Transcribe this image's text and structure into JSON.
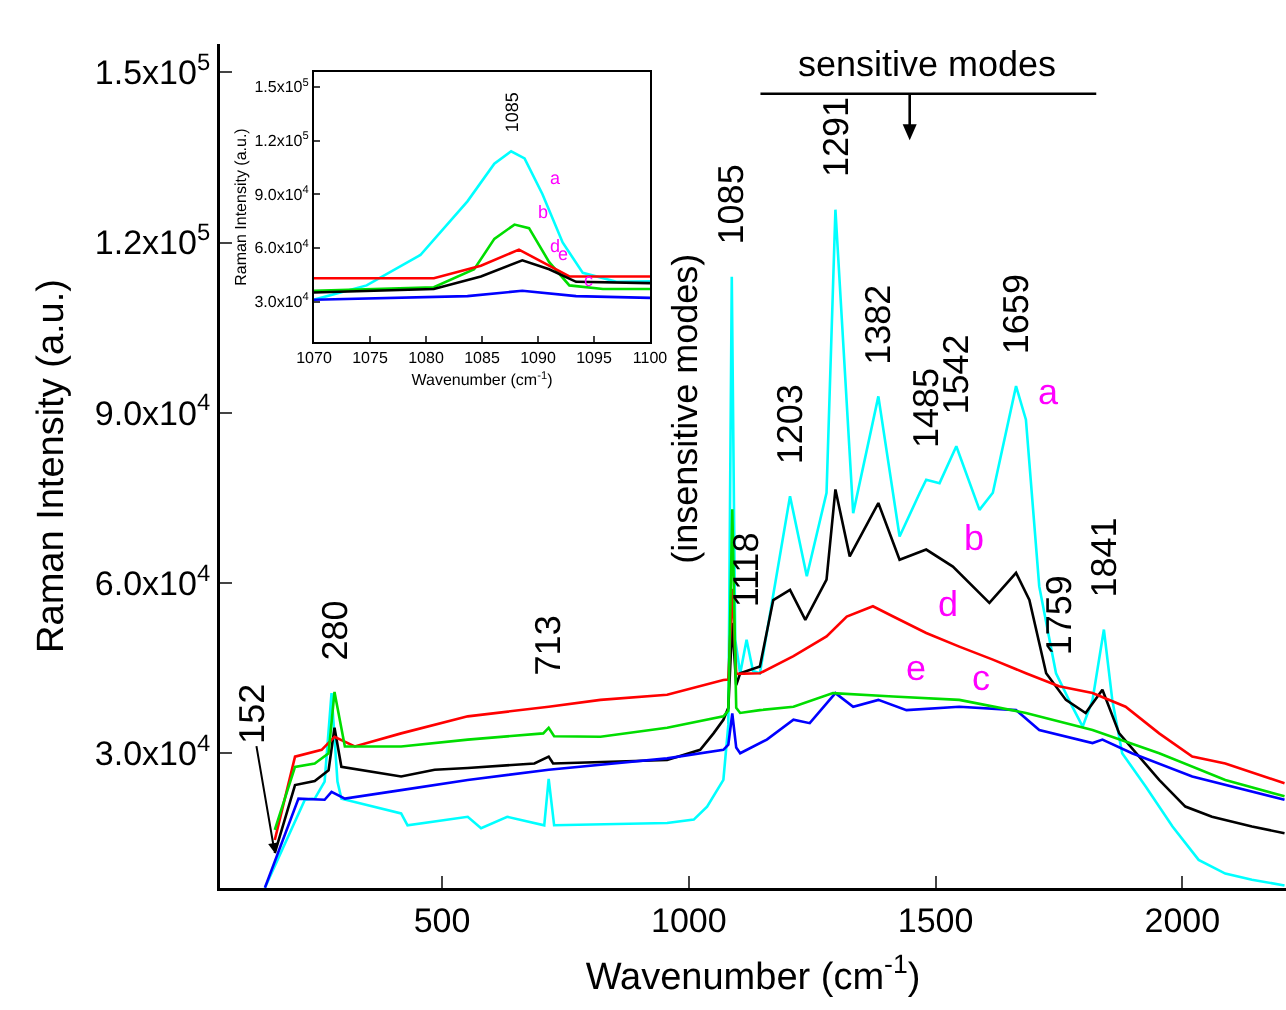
{
  "chart_data": [
    {
      "type": "line",
      "xlabel": "Wavenumber (cm$^{-1}$)",
      "ylabel": "Raman Intensity (a.u.)",
      "xlim": [
        50,
        2210
      ],
      "ylim": [
        6250,
        155000
      ],
      "xticks": [
        500,
        1000,
        1500,
        2000
      ],
      "yticks": [
        {
          "value": 30000,
          "label": "3.0x10$^{4}$"
        },
        {
          "value": 60000,
          "label": "6.0x10$^{4}$"
        },
        {
          "value": 90000,
          "label": "9.0x10$^{4}$"
        },
        {
          "value": 120000,
          "label": "1.2x10$^{5}$"
        },
        {
          "value": 150000,
          "label": "1.5x10$^{5}$"
        }
      ],
      "grid": false,
      "marker": "none",
      "line_style": "solid",
      "series": [
        {
          "color": "#00ffff",
          "x": [
            141,
            222,
            242,
            262,
            276,
            288,
            296,
            417,
            430,
            552,
            579,
            632,
            707,
            716,
            727,
            956,
            1010,
            1037,
            1070,
            1080,
            1087,
            1094,
            1104,
            1117,
            1130,
            1144,
            1205,
            1239,
            1279,
            1297,
            1333,
            1384,
            1427,
            1468,
            1481,
            1508,
            1542,
            1589,
            1616,
            1663,
            1683,
            1710,
            1744,
            1777,
            1798,
            1818,
            1841,
            1858,
            1878,
            1926,
            1980,
            2033,
            2087,
            2141,
            2207
          ],
          "values": [
            6300,
            21800,
            22000,
            25000,
            40600,
            25000,
            22000,
            19400,
            17300,
            18800,
            16800,
            18800,
            17300,
            25500,
            17300,
            17700,
            18300,
            20600,
            25300,
            35000,
            114000,
            50000,
            44000,
            50000,
            44500,
            44100,
            75300,
            61200,
            75900,
            125800,
            72300,
            92900,
            68200,
            75900,
            78200,
            77600,
            84100,
            72900,
            75900,
            94700,
            88800,
            59400,
            44100,
            38200,
            34700,
            39400,
            51800,
            39400,
            30000,
            24100,
            17100,
            11200,
            8800,
            7700,
            6700
          ]
        },
        {
          "color": "#000000",
          "x": [
            161,
            202,
            242,
            270,
            282,
            296,
            417,
            485,
            552,
            687,
            716,
            725,
            956,
            1023,
            1050,
            1070,
            1080,
            1088,
            1096,
            1104,
            1144,
            1171,
            1205,
            1236,
            1279,
            1297,
            1326,
            1384,
            1427,
            1481,
            1535,
            1609,
            1663,
            1690,
            1724,
            1764,
            1804,
            1838,
            1872,
            1953,
            2006,
            2060,
            2141,
            2207
          ],
          "values": [
            12400,
            24400,
            25100,
            27000,
            34500,
            27600,
            25900,
            27100,
            27400,
            28200,
            29400,
            28200,
            28800,
            30600,
            33500,
            35900,
            38000,
            53000,
            42000,
            44100,
            45300,
            57000,
            58800,
            53500,
            60600,
            76500,
            64700,
            74100,
            64100,
            65900,
            62900,
            56500,
            61800,
            57000,
            44100,
            39400,
            37100,
            41200,
            33500,
            25300,
            20600,
            18800,
            17100,
            15900
          ]
        },
        {
          "color": "#0000ff",
          "x": [
            141,
            209,
            262,
            276,
            303,
            417,
            552,
            716,
            956,
            1070,
            1080,
            1088,
            1096,
            1104,
            1158,
            1212,
            1245,
            1297,
            1333,
            1384,
            1441,
            1548,
            1663,
            1710,
            1818,
            1838,
            1898,
            2020,
            2207
          ],
          "values": [
            6300,
            22000,
            21800,
            23200,
            22000,
            23500,
            25300,
            27100,
            29100,
            30600,
            31500,
            37000,
            31000,
            30000,
            32400,
            35900,
            35300,
            40600,
            38200,
            39400,
            37600,
            38200,
            37600,
            34100,
            31800,
            32400,
            30000,
            25900,
            21800
          ]
        },
        {
          "color": "#ff0000",
          "x": [
            161,
            202,
            256,
            282,
            323,
            417,
            552,
            716,
            821,
            956,
            1070,
            1080,
            1088,
            1096,
            1144,
            1212,
            1279,
            1320,
            1373,
            1414,
            1481,
            1548,
            1616,
            1683,
            1750,
            1818,
            1885,
            1953,
            2020,
            2087,
            2207
          ],
          "values": [
            14700,
            29400,
            30600,
            32900,
            31200,
            33500,
            36500,
            38200,
            39400,
            40300,
            42900,
            43000,
            59000,
            44000,
            44100,
            47100,
            50600,
            54100,
            55900,
            54100,
            51200,
            48800,
            46500,
            44100,
            41800,
            40600,
            38200,
            33500,
            29400,
            28200,
            24700
          ]
        },
        {
          "color": "#00dd00",
          "x": [
            161,
            202,
            242,
            270,
            282,
            303,
            417,
            552,
            705,
            716,
            727,
            821,
            956,
            1070,
            1080,
            1088,
            1096,
            1104,
            1144,
            1212,
            1292,
            1414,
            1548,
            1683,
            1818,
            1953,
            2087,
            2207
          ],
          "values": [
            16500,
            27600,
            28200,
            30000,
            40800,
            31200,
            31200,
            32400,
            33500,
            34500,
            33000,
            32900,
            34500,
            36500,
            37500,
            73000,
            38000,
            37100,
            37600,
            38200,
            40600,
            40000,
            39400,
            37100,
            34100,
            30000,
            25300,
            22400
          ]
        }
      ],
      "annotations": [
        {
          "text": "152",
          "x": 161,
          "y": 12400
        },
        {
          "text": "280",
          "x": 282,
          "y": 40800
        },
        {
          "text": "713",
          "x": 716,
          "y": 38200
        },
        "(insensitive modes)",
        {
          "text": "1085",
          "x": 1087,
          "y": 114000
        },
        {
          "text": "1118",
          "x": 1117,
          "y": 50000
        },
        {
          "text": "1203",
          "x": 1205,
          "y": 75300
        },
        {
          "text": "1291",
          "x": 1297,
          "y": 125800
        },
        {
          "text": "1382",
          "x": 1384,
          "y": 92900
        },
        {
          "text": "1485",
          "x": 1481,
          "y": 78200
        },
        {
          "text": "1542",
          "x": 1542,
          "y": 84100
        },
        {
          "text": "1659",
          "x": 1663,
          "y": 94700
        },
        {
          "text": "1759",
          "x": 1750,
          "y": 41800
        },
        {
          "text": "1841",
          "x": 1841,
          "y": 51800
        },
        {
          "text": "a",
          "x": 1683,
          "y": 88800
        },
        {
          "text": "b",
          "x": 1535,
          "y": 62900
        },
        {
          "text": "d",
          "x": 1481,
          "y": 51200
        },
        {
          "text": "e",
          "x": 1414,
          "y": 40000
        },
        {
          "text": "c",
          "x": 1548,
          "y": 38200
        },
        "sensitive modes"
      ]
    },
    {
      "type": "line",
      "xlabel": "Wavenumber (cm$^{-1}$)",
      "ylabel": "Raman Intensity (a.u.)",
      "xlim": [
        1070,
        1100
      ],
      "ylim": [
        7360,
        158300
      ],
      "xticks": [
        1070,
        1075,
        1080,
        1085,
        1090,
        1095,
        1100
      ],
      "yticks": [
        {
          "value": 30000,
          "label": "3.0x10$^{4}$"
        },
        {
          "value": 60000,
          "label": "6.0x10$^{4}$"
        },
        {
          "value": 90000,
          "label": "9.0x10$^{4}$"
        },
        {
          "value": 120000,
          "label": "1.2x10$^{5}$"
        },
        {
          "value": 150000,
          "label": "1.5x10$^{5}$"
        }
      ],
      "grid": false,
      "marker": "none",
      "line_style": "solid",
      "series": [
        {
          "color": "#00ffff",
          "x": [
            1070,
            1074.7,
            1079.5,
            1083.7,
            1086.1,
            1087.6,
            1088.8,
            1090.4,
            1092.2,
            1094,
            1097,
            1100
          ],
          "values": [
            31000,
            39000,
            56000,
            86000,
            107000,
            114000,
            110000,
            90000,
            63000,
            46000,
            41000,
            41300
          ]
        },
        {
          "color": "#00dd00",
          "x": [
            1070,
            1080.7,
            1084.3,
            1086.1,
            1087.9,
            1089.2,
            1091,
            1092.8,
            1095.8,
            1100
          ],
          "values": [
            36000,
            38000,
            48000,
            65000,
            73000,
            71000,
            52000,
            39000,
            37000,
            37000
          ]
        },
        {
          "color": "#ff0000",
          "x": [
            1070,
            1080.7,
            1084.9,
            1088.3,
            1090.4,
            1092.8,
            1100
          ],
          "values": [
            43000,
            43000,
            50000,
            59000,
            52000,
            44000,
            44000
          ]
        },
        {
          "color": "#000000",
          "x": [
            1070,
            1080.7,
            1084.9,
            1088.6,
            1091,
            1093.4,
            1100
          ],
          "values": [
            35000,
            37000,
            44000,
            53000,
            48000,
            41000,
            40300
          ]
        },
        {
          "color": "#0000ff",
          "x": [
            1070,
            1083.7,
            1088.6,
            1093.4,
            1100
          ],
          "values": [
            31000,
            33000,
            36000,
            33000,
            32000
          ]
        }
      ],
      "annotations": [
        {
          "text": "1085",
          "x": 1087.6,
          "y": 114000
        },
        {
          "text": "a",
          "x": 1090.4,
          "y": 90000
        },
        {
          "text": "b",
          "x": 1089.2,
          "y": 71000
        },
        {
          "text": "d",
          "x": 1090.4,
          "y": 52000
        },
        {
          "text": "e",
          "x": 1091,
          "y": 48000
        },
        {
          "text": "c",
          "x": 1093.4,
          "y": 33000
        }
      ]
    }
  ]
}
